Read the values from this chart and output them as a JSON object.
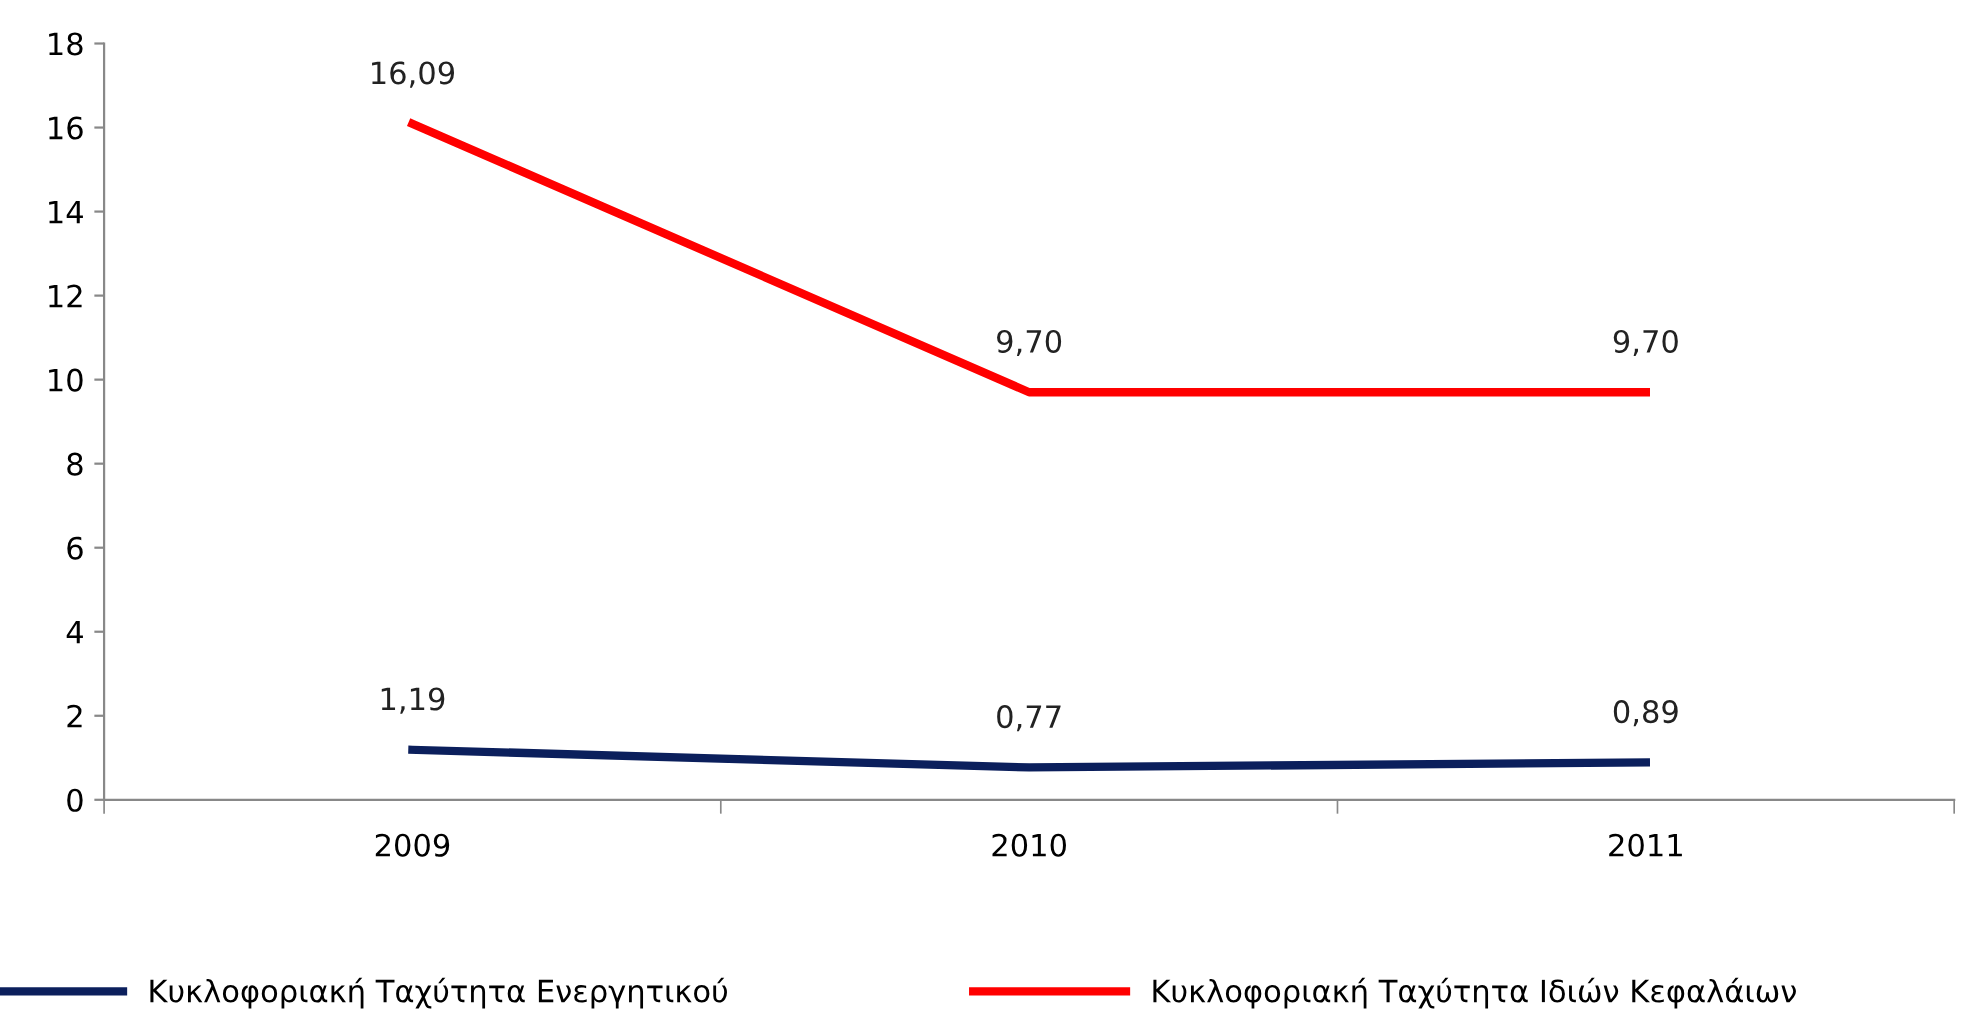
{
  "chart_data": {
    "type": "line",
    "categories": [
      "2009",
      "2010",
      "2011"
    ],
    "series": [
      {
        "name": "Κυκλοφοριακή Ταχύτητα Ενεργητικού",
        "color": "#0b1f5c",
        "values": [
          1.19,
          0.77,
          0.89
        ],
        "value_labels": [
          "1,19",
          "0,77",
          "0,89"
        ]
      },
      {
        "name": "Κυκλοφοριακή Ταχύτητα Ιδιών Κεφαλάιων",
        "color": "#ff0000",
        "values": [
          16.09,
          9.7,
          9.7
        ],
        "value_labels": [
          "16,09",
          "9,70",
          "9,70"
        ]
      }
    ],
    "ylim": [
      0,
      18
    ],
    "yticks": [
      0,
      2,
      4,
      6,
      8,
      10,
      12,
      14,
      16,
      18
    ],
    "grid": false,
    "legend": "bottom",
    "marker": "none",
    "line_style": "solid"
  }
}
